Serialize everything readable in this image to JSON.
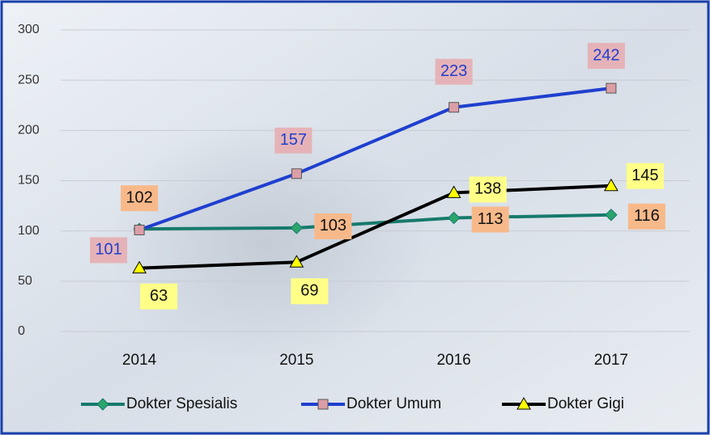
{
  "chart_data": {
    "type": "line",
    "categories": [
      "2014",
      "2015",
      "2016",
      "2017"
    ],
    "series": [
      {
        "name": "Dokter Spesialis",
        "color": "#167a6c",
        "values": [
          102,
          103,
          113,
          116
        ]
      },
      {
        "name": "Dokter Umum",
        "color": "#1f3fcf",
        "values": [
          101,
          157,
          223,
          242
        ]
      },
      {
        "name": "Dokter Gigi",
        "color": "#000000",
        "values": [
          63,
          69,
          138,
          145
        ]
      }
    ],
    "ylim": [
      0,
      300
    ],
    "yticks": [
      0,
      50,
      100,
      150,
      200,
      250,
      300
    ],
    "grid": true,
    "legend": "bottom"
  }
}
